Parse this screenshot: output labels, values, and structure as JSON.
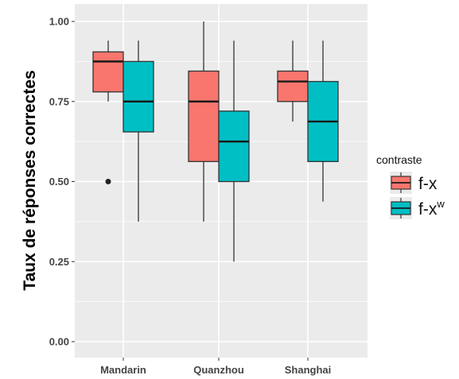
{
  "chart_data": {
    "type": "boxplot",
    "ylabel": "Taux de réponses correctes",
    "xlabel": "",
    "ylim": [
      0,
      1
    ],
    "yticks": [
      0.0,
      0.25,
      0.5,
      0.75,
      1.0
    ],
    "ytick_labels": [
      "0.00",
      "0.25",
      "0.50",
      "0.75",
      "1.00"
    ],
    "categories": [
      "Mandarin",
      "Quanzhou",
      "Shanghai"
    ],
    "grid": true,
    "legend": {
      "title": "contraste",
      "position": "right",
      "entries": [
        {
          "label": "f-x",
          "superscript": "",
          "color": "#F8766D"
        },
        {
          "label": "f-x",
          "superscript": "w",
          "color": "#00BFC4"
        }
      ]
    },
    "series": [
      {
        "color": "#F8766D",
        "boxes": [
          {
            "category": "Mandarin",
            "whisker_low": 0.75,
            "q1": 0.78,
            "median": 0.875,
            "q3": 0.905,
            "whisker_high": 0.94,
            "outliers": [
              0.5
            ]
          },
          {
            "category": "Quanzhou",
            "whisker_low": 0.375,
            "q1": 0.5625,
            "median": 0.75,
            "q3": 0.845,
            "whisker_high": 1.0,
            "outliers": []
          },
          {
            "category": "Shanghai",
            "whisker_low": 0.6875,
            "q1": 0.75,
            "median": 0.8125,
            "q3": 0.845,
            "whisker_high": 0.94,
            "outliers": []
          }
        ]
      },
      {
        "color": "#00BFC4",
        "boxes": [
          {
            "category": "Mandarin",
            "whisker_low": 0.375,
            "q1": 0.655,
            "median": 0.75,
            "q3": 0.875,
            "whisker_high": 0.94,
            "outliers": []
          },
          {
            "category": "Quanzhou",
            "whisker_low": 0.25,
            "q1": 0.5,
            "median": 0.625,
            "q3": 0.72,
            "whisker_high": 0.94,
            "outliers": []
          },
          {
            "category": "Shanghai",
            "whisker_low": 0.4375,
            "q1": 0.5625,
            "median": 0.6875,
            "q3": 0.8125,
            "whisker_high": 0.94,
            "outliers": []
          }
        ]
      }
    ]
  }
}
